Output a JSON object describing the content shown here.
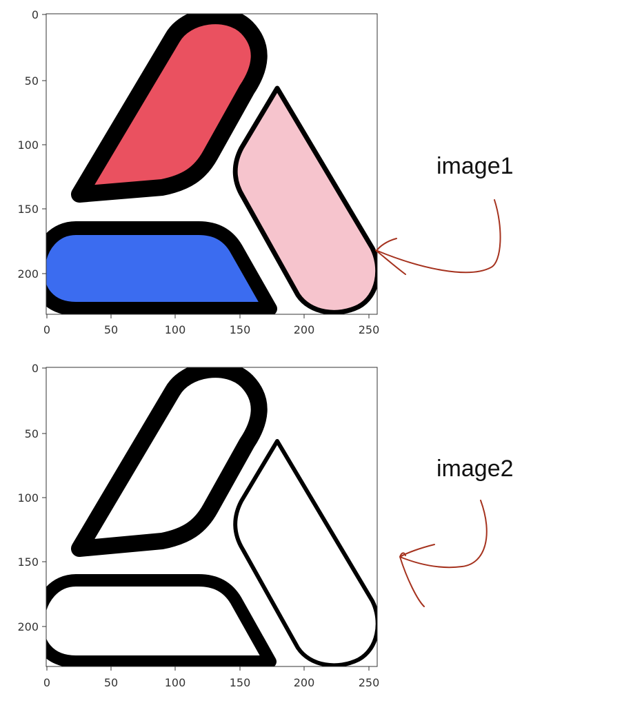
{
  "colors": {
    "red": "#ea5160",
    "pink": "#f6c4cd",
    "blue": "#3b6cf0",
    "outline": "#000000",
    "arrow": "#a5321e"
  },
  "panels": [
    {
      "annotation": "image1",
      "x_ticks": [
        "0",
        "50",
        "100",
        "150",
        "200",
        "250"
      ],
      "y_ticks": [
        "0",
        "50",
        "100",
        "150",
        "200"
      ],
      "filled": true
    },
    {
      "annotation": "image2",
      "x_ticks": [
        "0",
        "50",
        "100",
        "150",
        "200",
        "250"
      ],
      "y_ticks": [
        "0",
        "50",
        "100",
        "150",
        "200"
      ],
      "filled": false
    }
  ]
}
